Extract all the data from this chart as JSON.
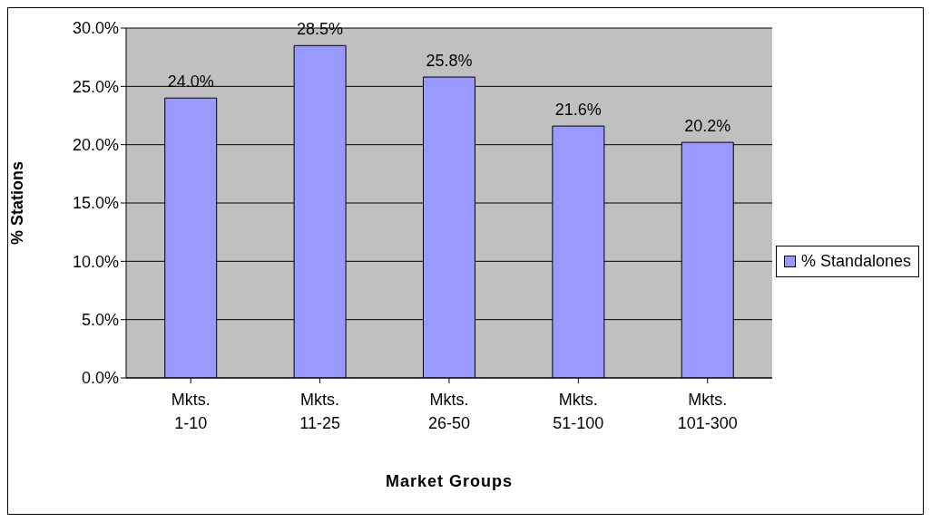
{
  "chart_data": {
    "type": "bar",
    "xlabel": "Market Groups",
    "ylabel": "% Stations",
    "categories": [
      "Mkts. 1-10",
      "Mkts. 11-25",
      "Mkts. 26-50",
      "Mkts. 51-100",
      "Mkts. 101-300"
    ],
    "series": [
      {
        "name": "% Standalones",
        "color": "#9999ff",
        "values": [
          24.0,
          28.5,
          25.8,
          21.6,
          20.2
        ],
        "value_labels": [
          "24.0%",
          "28.5%",
          "25.8%",
          "21.6%",
          "20.2%"
        ]
      }
    ],
    "ylim": [
      0,
      30
    ],
    "yticks": [
      {
        "value": 0,
        "label": "0.0%"
      },
      {
        "value": 5,
        "label": "5.0%"
      },
      {
        "value": 10,
        "label": "10.0%"
      },
      {
        "value": 15,
        "label": "15.0%"
      },
      {
        "value": 20,
        "label": "20.0%"
      },
      {
        "value": 25,
        "label": "25.0%"
      },
      {
        "value": 30,
        "label": "30.0%"
      }
    ],
    "grid": "y",
    "legend": "right"
  }
}
